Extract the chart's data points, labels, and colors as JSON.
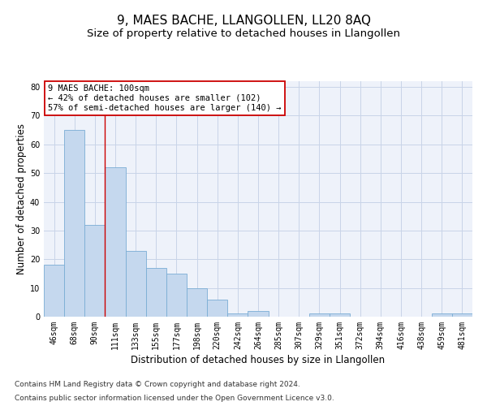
{
  "title": "9, MAES BACHE, LLANGOLLEN, LL20 8AQ",
  "subtitle": "Size of property relative to detached houses in Llangollen",
  "xlabel": "Distribution of detached houses by size in Llangollen",
  "ylabel": "Number of detached properties",
  "footnote1": "Contains HM Land Registry data © Crown copyright and database right 2024.",
  "footnote2": "Contains public sector information licensed under the Open Government Licence v3.0.",
  "categories": [
    "46sqm",
    "68sqm",
    "90sqm",
    "111sqm",
    "133sqm",
    "155sqm",
    "177sqm",
    "198sqm",
    "220sqm",
    "242sqm",
    "264sqm",
    "285sqm",
    "307sqm",
    "329sqm",
    "351sqm",
    "372sqm",
    "394sqm",
    "416sqm",
    "438sqm",
    "459sqm",
    "481sqm"
  ],
  "values": [
    18,
    65,
    32,
    52,
    23,
    17,
    15,
    10,
    6,
    1,
    2,
    0,
    0,
    1,
    1,
    0,
    0,
    0,
    0,
    1,
    1
  ],
  "bar_color": "#c5d8ee",
  "bar_edgecolor": "#7aadd4",
  "grid_color": "#c8d4e8",
  "background_color": "#eef2fa",
  "annotation_line1": "9 MAES BACHE: 100sqm",
  "annotation_line2": "← 42% of detached houses are smaller (102)",
  "annotation_line3": "57% of semi-detached houses are larger (140) →",
  "annotation_box_color": "#cc0000",
  "vline_color": "#cc0000",
  "vline_pos": 2.5,
  "ylim": [
    0,
    82
  ],
  "yticks": [
    0,
    10,
    20,
    30,
    40,
    50,
    60,
    70,
    80
  ],
  "title_fontsize": 11,
  "subtitle_fontsize": 9.5,
  "axis_label_fontsize": 8.5,
  "tick_fontsize": 7,
  "annotation_fontsize": 7.5,
  "footnote_fontsize": 6.5
}
